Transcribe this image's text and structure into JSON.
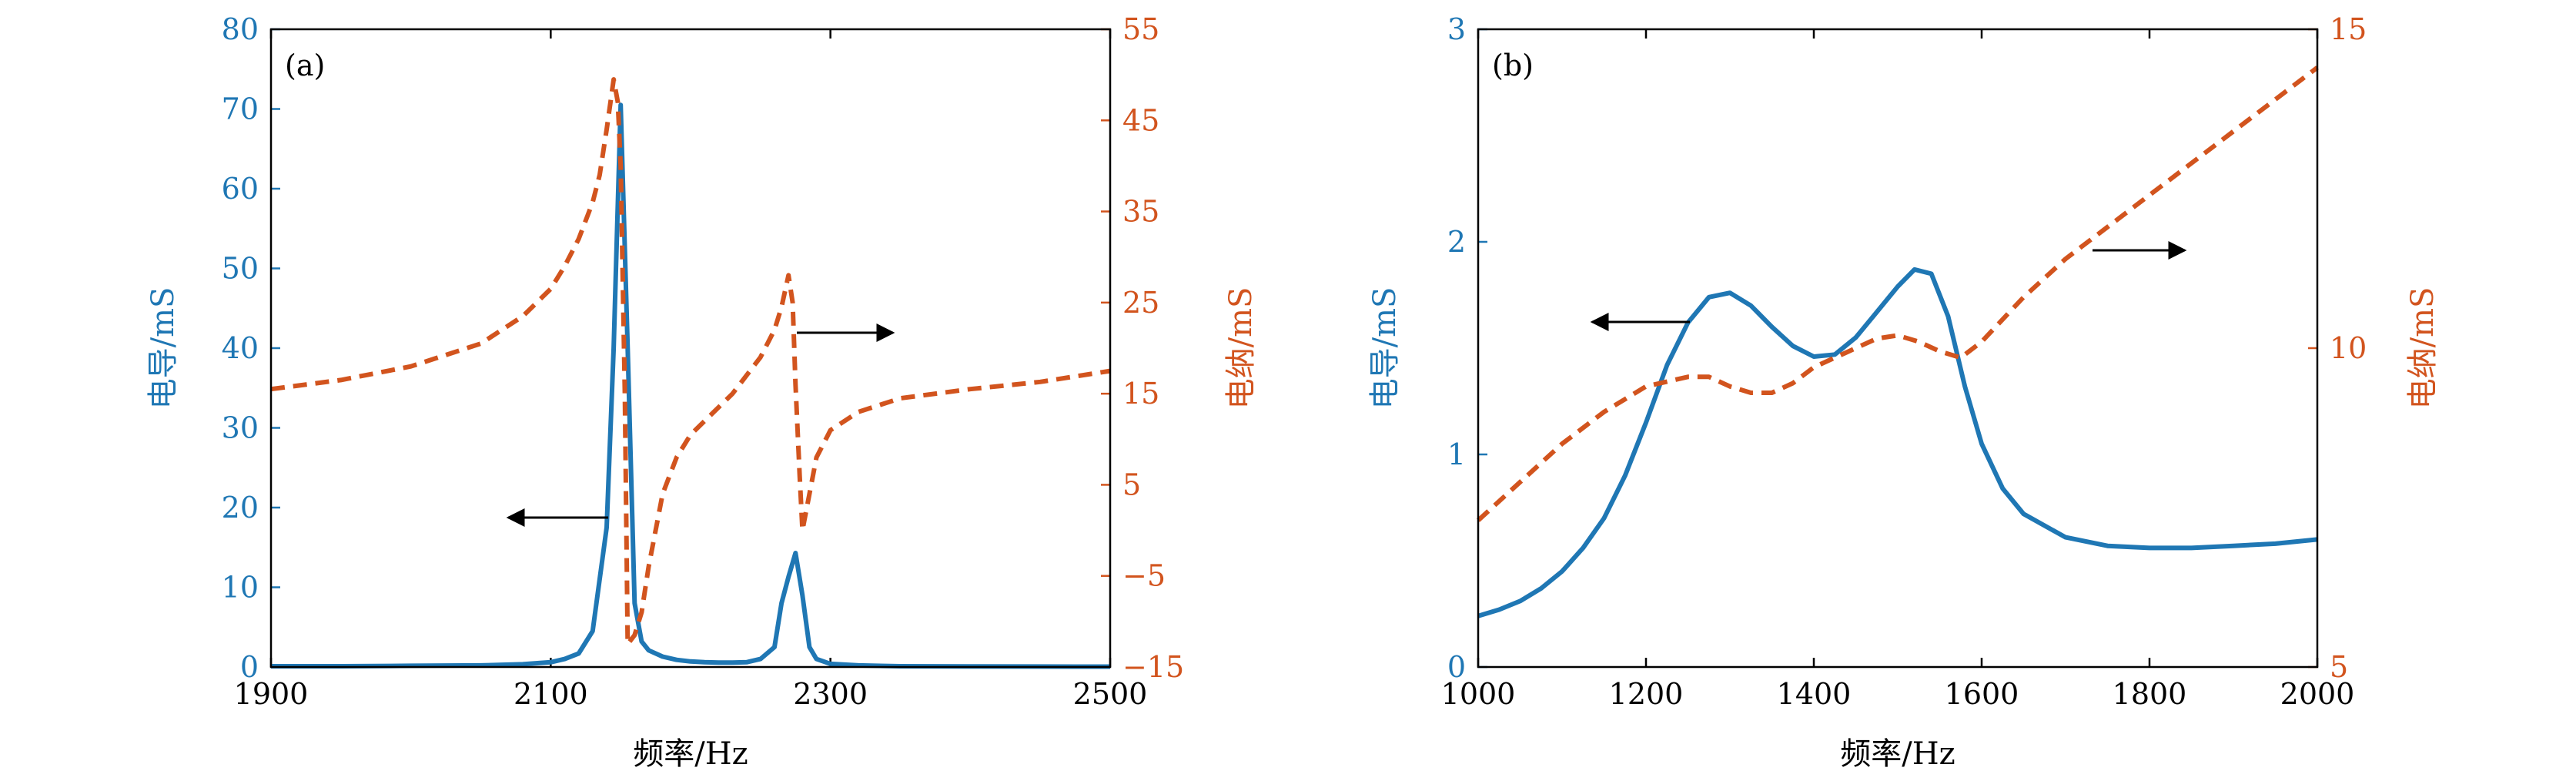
{
  "colors": {
    "left_axis": "#1f77b4",
    "right_axis": "#d2541e",
    "frame": "#000000",
    "arrow": "#000000"
  },
  "chart_data": [
    {
      "type": "line",
      "panel_label": "(a)",
      "xlabel": "频率/Hz",
      "ylabel_left": "电导/mS",
      "ylabel_right": "电纳/mS",
      "xlim": [
        1900,
        2500
      ],
      "ylim_left": [
        0,
        80
      ],
      "ylim_right": [
        -15,
        55
      ],
      "xticks": [
        1900,
        2100,
        2300,
        2500
      ],
      "xtick_labels": [
        "1900",
        "2100",
        "2300",
        "2500"
      ],
      "yticks_left": [
        0,
        10,
        20,
        30,
        40,
        50,
        60,
        70,
        80
      ],
      "ytick_labels_left": [
        "0",
        "10",
        "20",
        "30",
        "40",
        "50",
        "60",
        "70",
        "80"
      ],
      "yticks_right": [
        -15,
        -5,
        5,
        15,
        25,
        35,
        45,
        55
      ],
      "ytick_labels_right": [
        "−15",
        "−5",
        "5",
        "15",
        "25",
        "35",
        "45",
        "55"
      ],
      "series": [
        {
          "name": "电导",
          "axis": "left",
          "style": "solid",
          "x": [
            1900,
            1950,
            2000,
            2050,
            2080,
            2100,
            2110,
            2120,
            2130,
            2140,
            2145,
            2150,
            2155,
            2160,
            2165,
            2170,
            2180,
            2190,
            2200,
            2210,
            2220,
            2230,
            2240,
            2250,
            2260,
            2265,
            2270,
            2275,
            2280,
            2285,
            2290,
            2300,
            2320,
            2350,
            2400,
            2450,
            2500
          ],
          "values": [
            0.1,
            0.1,
            0.15,
            0.2,
            0.35,
            0.6,
            1.0,
            1.7,
            4.5,
            17.5,
            40,
            70.5,
            40,
            8,
            3.2,
            2.1,
            1.3,
            0.9,
            0.7,
            0.6,
            0.55,
            0.55,
            0.6,
            1.0,
            2.5,
            8,
            11.3,
            14.3,
            9,
            2.5,
            1.0,
            0.4,
            0.2,
            0.1,
            0.08,
            0.06,
            0.05
          ]
        },
        {
          "name": "电纳",
          "axis": "right",
          "style": "dashed",
          "x": [
            1900,
            1950,
            2000,
            2050,
            2080,
            2100,
            2110,
            2120,
            2130,
            2135,
            2140,
            2145,
            2148,
            2150,
            2153,
            2155,
            2160,
            2165,
            2170,
            2180,
            2190,
            2200,
            2210,
            2230,
            2250,
            2260,
            2265,
            2270,
            2273,
            2275,
            2278,
            2280,
            2285,
            2290,
            2300,
            2320,
            2350,
            2400,
            2450,
            2500
          ],
          "values": [
            15.5,
            16.5,
            18,
            20.5,
            23.5,
            26.5,
            29,
            32,
            36,
            39,
            44,
            49.5,
            47,
            40,
            15,
            -12.5,
            -11.5,
            -9,
            -4,
            4,
            8,
            10.5,
            12,
            15,
            19,
            22,
            24.5,
            28,
            25,
            16,
            6,
            0,
            4,
            8,
            11,
            13,
            14.5,
            15.5,
            16.3,
            17.5
          ]
        }
      ],
      "annotations": [
        {
          "type": "arrow",
          "direction": "left",
          "points_to": "left axis"
        },
        {
          "type": "arrow",
          "direction": "right",
          "points_to": "right axis"
        }
      ]
    },
    {
      "type": "line",
      "panel_label": "(b)",
      "xlabel": "频率/Hz",
      "ylabel_left": "电导/mS",
      "ylabel_right": "电纳/mS",
      "xlim": [
        1000,
        2000
      ],
      "ylim_left": [
        0,
        3
      ],
      "ylim_right": [
        5,
        15
      ],
      "xticks": [
        1000,
        1200,
        1400,
        1600,
        1800,
        2000
      ],
      "xtick_labels": [
        "1000",
        "1200",
        "1400",
        "1600",
        "1800",
        "2000"
      ],
      "yticks_left": [
        0,
        1,
        2,
        3
      ],
      "ytick_labels_left": [
        "0",
        "1",
        "2",
        "3"
      ],
      "yticks_right": [
        5,
        10,
        15
      ],
      "ytick_labels_right": [
        "5",
        "10",
        "15"
      ],
      "series": [
        {
          "name": "电导",
          "axis": "left",
          "style": "solid",
          "x": [
            1000,
            1025,
            1050,
            1075,
            1100,
            1125,
            1150,
            1175,
            1200,
            1225,
            1250,
            1275,
            1300,
            1325,
            1350,
            1375,
            1400,
            1425,
            1450,
            1475,
            1500,
            1520,
            1540,
            1560,
            1580,
            1600,
            1625,
            1650,
            1700,
            1750,
            1800,
            1850,
            1900,
            1950,
            2000
          ],
          "values": [
            0.24,
            0.27,
            0.31,
            0.37,
            0.45,
            0.56,
            0.7,
            0.9,
            1.15,
            1.42,
            1.62,
            1.74,
            1.76,
            1.7,
            1.6,
            1.51,
            1.46,
            1.47,
            1.55,
            1.67,
            1.79,
            1.87,
            1.85,
            1.65,
            1.32,
            1.05,
            0.84,
            0.72,
            0.61,
            0.57,
            0.56,
            0.56,
            0.57,
            0.58,
            0.6
          ]
        },
        {
          "name": "电纳",
          "axis": "right",
          "style": "dashed",
          "x": [
            1000,
            1050,
            1100,
            1150,
            1200,
            1250,
            1275,
            1300,
            1325,
            1350,
            1375,
            1400,
            1425,
            1450,
            1475,
            1500,
            1525,
            1550,
            1575,
            1600,
            1650,
            1700,
            1750,
            1800,
            1850,
            1900,
            1950,
            2000
          ],
          "values": [
            7.3,
            7.9,
            8.5,
            9.0,
            9.4,
            9.55,
            9.55,
            9.4,
            9.3,
            9.3,
            9.45,
            9.7,
            9.85,
            10.0,
            10.15,
            10.2,
            10.1,
            9.95,
            9.85,
            10.1,
            10.8,
            11.4,
            11.9,
            12.4,
            12.9,
            13.4,
            13.9,
            14.4
          ]
        }
      ],
      "annotations": [
        {
          "type": "arrow",
          "direction": "left",
          "points_to": "left axis"
        },
        {
          "type": "arrow",
          "direction": "right",
          "points_to": "right axis"
        }
      ]
    }
  ]
}
